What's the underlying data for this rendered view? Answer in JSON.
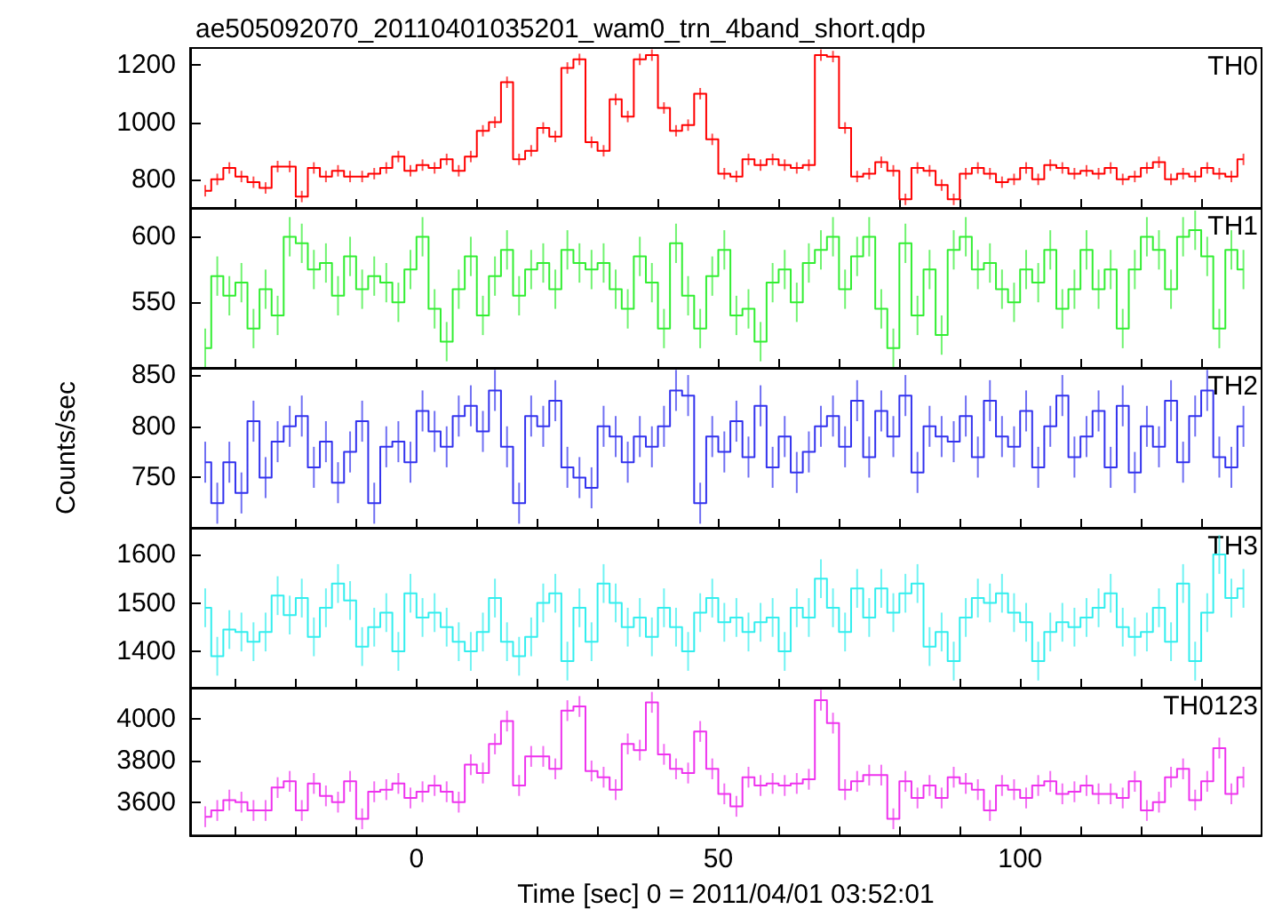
{
  "chart_data": [
    {
      "type": "step",
      "title": "ae505092070_20110401035201_wam0_trn_4band_short.qdp",
      "annotations": [
        "TH0"
      ],
      "color": "#ff0000",
      "marker": "none",
      "tick_labels": "y",
      "x": [
        -35,
        -33,
        -31,
        -29,
        -27,
        -25,
        -23,
        -21,
        -19,
        -17,
        -15,
        -13,
        -11,
        -9,
        -7,
        -5,
        -3,
        -1,
        1,
        3,
        5,
        7,
        9,
        11,
        13,
        15,
        17,
        19,
        21,
        23,
        25,
        27,
        29,
        31,
        33,
        35,
        37,
        39,
        41,
        43,
        45,
        47,
        49,
        51,
        53,
        55,
        57,
        59,
        61,
        63,
        65,
        67,
        69,
        71,
        73,
        75,
        77,
        79,
        81,
        83,
        85,
        87,
        89,
        91,
        93,
        95,
        97,
        99,
        101,
        103,
        105,
        107,
        109,
        111,
        113,
        115,
        117,
        119,
        121,
        123,
        125,
        127,
        129,
        131,
        133,
        135,
        137
      ],
      "values": [
        760,
        800,
        840,
        810,
        790,
        770,
        845,
        845,
        740,
        840,
        810,
        830,
        810,
        810,
        820,
        840,
        880,
        830,
        850,
        840,
        870,
        830,
        880,
        970,
        1000,
        1140,
        870,
        900,
        980,
        950,
        1190,
        1220,
        930,
        900,
        1080,
        1020,
        1220,
        1235,
        1050,
        970,
        990,
        1100,
        940,
        820,
        810,
        870,
        850,
        870,
        850,
        840,
        850,
        1235,
        1230,
        980,
        810,
        820,
        860,
        830,
        730,
        840,
        830,
        780,
        730,
        820,
        840,
        820,
        790,
        800,
        840,
        800,
        850,
        840,
        820,
        830,
        820,
        840,
        800,
        810,
        840,
        860,
        800,
        820,
        810,
        840,
        820,
        810,
        870
      ],
      "errors": [
        20,
        20,
        20,
        20,
        20,
        20,
        20,
        20,
        20,
        20,
        20,
        20,
        20,
        20,
        20,
        20,
        20,
        20,
        20,
        20,
        20,
        20,
        20,
        20,
        20,
        20,
        20,
        20,
        20,
        20,
        20,
        20,
        20,
        20,
        20,
        20,
        20,
        20,
        20,
        20,
        20,
        20,
        20,
        20,
        20,
        20,
        20,
        20,
        20,
        20,
        20,
        20,
        20,
        20,
        20,
        20,
        20,
        20,
        20,
        20,
        20,
        20,
        20,
        20,
        20,
        20,
        20,
        20,
        20,
        20,
        20,
        20,
        20,
        20,
        20,
        20,
        20,
        20,
        20,
        20,
        20,
        20,
        20,
        20,
        20,
        20,
        20
      ],
      "xlim": [
        -37.5,
        140
      ],
      "xticks": [
        {
          "value": -30,
          "label": null
        },
        {
          "value": -20,
          "label": null
        },
        {
          "value": -10,
          "label": null
        },
        0,
        {
          "value": 10,
          "label": null
        },
        {
          "value": 20,
          "label": null
        },
        {
          "value": 30,
          "label": null
        },
        {
          "value": 40,
          "label": null
        },
        50,
        {
          "value": 60,
          "label": null
        },
        {
          "value": 70,
          "label": null
        },
        {
          "value": 80,
          "label": null
        },
        {
          "value": 90,
          "label": null
        },
        100,
        {
          "value": 110,
          "label": null
        },
        {
          "value": 120,
          "label": null
        },
        {
          "value": 130,
          "label": null
        }
      ],
      "ylim": [
        700,
        1260
      ],
      "yticks": [
        800,
        1000,
        1200
      ]
    },
    {
      "type": "step",
      "annotations": [
        "TH1"
      ],
      "color": "#33ee33",
      "marker": "none",
      "tick_labels": "y",
      "x": [
        -35,
        -33,
        -31,
        -29,
        -27,
        -25,
        -23,
        -21,
        -19,
        -17,
        -15,
        -13,
        -11,
        -9,
        -7,
        -5,
        -3,
        -1,
        1,
        3,
        5,
        7,
        9,
        11,
        13,
        15,
        17,
        19,
        21,
        23,
        25,
        27,
        29,
        31,
        33,
        35,
        37,
        39,
        41,
        43,
        45,
        47,
        49,
        51,
        53,
        55,
        57,
        59,
        61,
        63,
        65,
        67,
        69,
        71,
        73,
        75,
        77,
        79,
        81,
        83,
        85,
        87,
        89,
        91,
        93,
        95,
        97,
        99,
        101,
        103,
        105,
        107,
        109,
        111,
        113,
        115,
        117,
        119,
        121,
        123,
        125,
        127,
        129,
        131,
        133,
        135,
        137
      ],
      "values": [
        515,
        570,
        555,
        565,
        530,
        560,
        540,
        600,
        595,
        575,
        580,
        555,
        585,
        560,
        570,
        565,
        550,
        575,
        600,
        545,
        520,
        560,
        585,
        540,
        570,
        590,
        555,
        575,
        580,
        560,
        590,
        580,
        575,
        580,
        560,
        545,
        585,
        565,
        530,
        595,
        555,
        530,
        570,
        590,
        540,
        545,
        520,
        565,
        575,
        550,
        580,
        590,
        600,
        560,
        585,
        600,
        545,
        515,
        595,
        540,
        575,
        525,
        590,
        600,
        575,
        580,
        560,
        550,
        575,
        565,
        590,
        545,
        560,
        590,
        560,
        575,
        530,
        575,
        600,
        590,
        560,
        600,
        605,
        585,
        530,
        590,
        575
      ],
      "errors": [
        15,
        15,
        15,
        15,
        15,
        15,
        15,
        15,
        15,
        15,
        15,
        15,
        15,
        15,
        15,
        15,
        15,
        15,
        15,
        15,
        15,
        15,
        15,
        15,
        15,
        15,
        15,
        15,
        15,
        15,
        15,
        15,
        15,
        15,
        15,
        15,
        15,
        15,
        15,
        15,
        15,
        15,
        15,
        15,
        15,
        15,
        15,
        15,
        15,
        15,
        15,
        15,
        15,
        15,
        15,
        15,
        15,
        15,
        15,
        15,
        15,
        15,
        15,
        15,
        15,
        15,
        15,
        15,
        15,
        15,
        15,
        15,
        15,
        15,
        15,
        15,
        15,
        15,
        15,
        15,
        15,
        15,
        15,
        15,
        15,
        15,
        15
      ],
      "xlim": [
        -37.5,
        140
      ],
      "xticks": [
        {
          "value": -30,
          "label": null
        },
        {
          "value": -20,
          "label": null
        },
        {
          "value": -10,
          "label": null
        },
        0,
        {
          "value": 10,
          "label": null
        },
        {
          "value": 20,
          "label": null
        },
        {
          "value": 30,
          "label": null
        },
        {
          "value": 40,
          "label": null
        },
        50,
        {
          "value": 60,
          "label": null
        },
        {
          "value": 70,
          "label": null
        },
        {
          "value": 80,
          "label": null
        },
        {
          "value": 90,
          "label": null
        },
        100,
        {
          "value": 110,
          "label": null
        },
        {
          "value": 120,
          "label": null
        },
        {
          "value": 130,
          "label": null
        }
      ],
      "ylim": [
        500,
        622
      ],
      "yticks": [
        550,
        600
      ]
    },
    {
      "type": "step",
      "ylabel": "Counts/sec",
      "annotations": [
        "TH2"
      ],
      "color": "#3333ee",
      "marker": "none",
      "tick_labels": "y",
      "x": [
        -35,
        -33,
        -31,
        -29,
        -27,
        -25,
        -23,
        -21,
        -19,
        -17,
        -15,
        -13,
        -11,
        -9,
        -7,
        -5,
        -3,
        -1,
        1,
        3,
        5,
        7,
        9,
        11,
        13,
        15,
        17,
        19,
        21,
        23,
        25,
        27,
        29,
        31,
        33,
        35,
        37,
        39,
        41,
        43,
        45,
        47,
        49,
        51,
        53,
        55,
        57,
        59,
        61,
        63,
        65,
        67,
        69,
        71,
        73,
        75,
        77,
        79,
        81,
        83,
        85,
        87,
        89,
        91,
        93,
        95,
        97,
        99,
        101,
        103,
        105,
        107,
        109,
        111,
        113,
        115,
        117,
        119,
        121,
        123,
        125,
        127,
        129,
        131,
        133,
        135,
        137
      ],
      "values": [
        765,
        725,
        765,
        735,
        805,
        750,
        785,
        800,
        810,
        760,
        785,
        745,
        775,
        805,
        725,
        780,
        785,
        765,
        815,
        795,
        780,
        810,
        820,
        795,
        835,
        780,
        725,
        810,
        800,
        825,
        760,
        750,
        740,
        800,
        790,
        765,
        790,
        780,
        800,
        835,
        830,
        725,
        790,
        775,
        805,
        770,
        820,
        760,
        790,
        755,
        775,
        800,
        810,
        780,
        825,
        770,
        815,
        790,
        830,
        755,
        800,
        790,
        785,
        810,
        770,
        825,
        790,
        780,
        815,
        760,
        800,
        830,
        770,
        790,
        815,
        760,
        820,
        755,
        800,
        780,
        825,
        765,
        810,
        835,
        770,
        760,
        800
      ],
      "errors": [
        20,
        20,
        20,
        20,
        20,
        20,
        20,
        20,
        20,
        20,
        20,
        20,
        20,
        20,
        20,
        20,
        20,
        20,
        20,
        20,
        20,
        20,
        20,
        20,
        20,
        20,
        20,
        20,
        20,
        20,
        20,
        20,
        20,
        20,
        20,
        20,
        20,
        20,
        20,
        20,
        20,
        20,
        20,
        20,
        20,
        20,
        20,
        20,
        20,
        20,
        20,
        20,
        20,
        20,
        20,
        20,
        20,
        20,
        20,
        20,
        20,
        20,
        20,
        20,
        20,
        20,
        20,
        20,
        20,
        20,
        20,
        20,
        20,
        20,
        20,
        20,
        20,
        20,
        20,
        20,
        20,
        20,
        20,
        20,
        20,
        20,
        20
      ],
      "xlim": [
        -37.5,
        140
      ],
      "xticks": [
        {
          "value": -30,
          "label": null
        },
        {
          "value": -20,
          "label": null
        },
        {
          "value": -10,
          "label": null
        },
        0,
        {
          "value": 10,
          "label": null
        },
        {
          "value": 20,
          "label": null
        },
        {
          "value": 30,
          "label": null
        },
        {
          "value": 40,
          "label": null
        },
        50,
        {
          "value": 60,
          "label": null
        },
        {
          "value": 70,
          "label": null
        },
        {
          "value": 80,
          "label": null
        },
        {
          "value": 90,
          "label": null
        },
        100,
        {
          "value": 110,
          "label": null
        },
        {
          "value": 120,
          "label": null
        },
        {
          "value": 130,
          "label": null
        }
      ],
      "ylim": [
        701,
        857
      ],
      "yticks": [
        750,
        800,
        850
      ]
    },
    {
      "type": "step",
      "annotations": [
        "TH3"
      ],
      "color": "#33eeee",
      "marker": "none",
      "tick_labels": "y",
      "x": [
        -35,
        -33,
        -31,
        -29,
        -27,
        -25,
        -23,
        -21,
        -19,
        -17,
        -15,
        -13,
        -11,
        -9,
        -7,
        -5,
        -3,
        -1,
        1,
        3,
        5,
        7,
        9,
        11,
        13,
        15,
        17,
        19,
        21,
        23,
        25,
        27,
        29,
        31,
        33,
        35,
        37,
        39,
        41,
        43,
        45,
        47,
        49,
        51,
        53,
        55,
        57,
        59,
        61,
        63,
        65,
        67,
        69,
        71,
        73,
        75,
        77,
        79,
        81,
        83,
        85,
        87,
        89,
        91,
        93,
        95,
        97,
        99,
        101,
        103,
        105,
        107,
        109,
        111,
        113,
        115,
        117,
        119,
        121,
        123,
        125,
        127,
        129,
        131,
        133,
        135,
        137
      ],
      "values": [
        1490,
        1390,
        1445,
        1440,
        1420,
        1440,
        1515,
        1475,
        1510,
        1430,
        1490,
        1540,
        1505,
        1410,
        1450,
        1480,
        1400,
        1520,
        1470,
        1480,
        1450,
        1420,
        1400,
        1440,
        1510,
        1420,
        1390,
        1430,
        1500,
        1520,
        1380,
        1490,
        1420,
        1540,
        1500,
        1450,
        1470,
        1430,
        1490,
        1450,
        1400,
        1480,
        1510,
        1460,
        1470,
        1440,
        1460,
        1470,
        1400,
        1490,
        1470,
        1550,
        1490,
        1440,
        1530,
        1470,
        1530,
        1480,
        1520,
        1540,
        1410,
        1440,
        1380,
        1470,
        1510,
        1500,
        1520,
        1480,
        1460,
        1380,
        1440,
        1460,
        1450,
        1470,
        1490,
        1520,
        1450,
        1430,
        1440,
        1490,
        1420,
        1540,
        1380,
        1480,
        1600,
        1510,
        1530
      ],
      "errors": [
        40,
        40,
        40,
        40,
        40,
        40,
        40,
        40,
        40,
        40,
        40,
        40,
        40,
        40,
        40,
        40,
        40,
        40,
        40,
        40,
        40,
        40,
        40,
        40,
        40,
        40,
        40,
        40,
        40,
        40,
        40,
        40,
        40,
        40,
        40,
        40,
        40,
        40,
        40,
        40,
        40,
        40,
        40,
        40,
        40,
        40,
        40,
        40,
        40,
        40,
        40,
        40,
        40,
        40,
        40,
        40,
        40,
        40,
        40,
        40,
        40,
        40,
        40,
        40,
        40,
        40,
        40,
        40,
        40,
        40,
        40,
        40,
        40,
        40,
        40,
        40,
        40,
        40,
        40,
        40,
        40,
        40,
        40,
        40,
        40,
        40,
        40
      ],
      "xlim": [
        -37.5,
        140
      ],
      "xticks": [
        {
          "value": -30,
          "label": null
        },
        {
          "value": -20,
          "label": null
        },
        {
          "value": -10,
          "label": null
        },
        0,
        {
          "value": 10,
          "label": null
        },
        {
          "value": 20,
          "label": null
        },
        {
          "value": 30,
          "label": null
        },
        {
          "value": 40,
          "label": null
        },
        50,
        {
          "value": 60,
          "label": null
        },
        {
          "value": 70,
          "label": null
        },
        {
          "value": 80,
          "label": null
        },
        {
          "value": 90,
          "label": null
        },
        100,
        {
          "value": 110,
          "label": null
        },
        {
          "value": 120,
          "label": null
        },
        {
          "value": 130,
          "label": null
        }
      ],
      "ylim": [
        1325,
        1655
      ],
      "yticks": [
        1400,
        1500,
        1600
      ]
    },
    {
      "type": "step",
      "xlabel": "Time [sec] 0 = 2011/04/01 03:52:01",
      "annotations": [
        "TH0123"
      ],
      "color": "#ee33ee",
      "marker": "none",
      "x": [
        -35,
        -33,
        -31,
        -29,
        -27,
        -25,
        -23,
        -21,
        -19,
        -17,
        -15,
        -13,
        -11,
        -9,
        -7,
        -5,
        -3,
        -1,
        1,
        3,
        5,
        7,
        9,
        11,
        13,
        15,
        17,
        19,
        21,
        23,
        25,
        27,
        29,
        31,
        33,
        35,
        37,
        39,
        41,
        43,
        45,
        47,
        49,
        51,
        53,
        55,
        57,
        59,
        61,
        63,
        65,
        67,
        69,
        71,
        73,
        75,
        77,
        79,
        81,
        83,
        85,
        87,
        89,
        91,
        93,
        95,
        97,
        99,
        101,
        103,
        105,
        107,
        109,
        111,
        113,
        115,
        117,
        119,
        121,
        123,
        125,
        127,
        129,
        131,
        133,
        135,
        137
      ],
      "values": [
        3530,
        3560,
        3610,
        3600,
        3560,
        3560,
        3670,
        3700,
        3560,
        3690,
        3630,
        3600,
        3700,
        3520,
        3650,
        3660,
        3690,
        3620,
        3650,
        3680,
        3650,
        3600,
        3780,
        3740,
        3880,
        3990,
        3680,
        3820,
        3820,
        3760,
        4040,
        4060,
        3750,
        3720,
        3660,
        3880,
        3850,
        4080,
        3830,
        3760,
        3740,
        3940,
        3760,
        3640,
        3580,
        3720,
        3680,
        3690,
        3680,
        3690,
        3710,
        4090,
        3980,
        3660,
        3700,
        3730,
        3730,
        3520,
        3700,
        3620,
        3680,
        3620,
        3720,
        3690,
        3660,
        3560,
        3680,
        3660,
        3620,
        3680,
        3700,
        3640,
        3650,
        3680,
        3640,
        3640,
        3620,
        3700,
        3560,
        3600,
        3720,
        3760,
        3610,
        3700,
        3860,
        3640,
        3720
      ],
      "errors": [
        50,
        50,
        50,
        50,
        50,
        50,
        50,
        50,
        50,
        50,
        50,
        50,
        50,
        50,
        50,
        50,
        50,
        50,
        50,
        50,
        50,
        50,
        50,
        50,
        50,
        50,
        50,
        50,
        50,
        50,
        50,
        50,
        50,
        50,
        50,
        50,
        50,
        50,
        50,
        50,
        50,
        50,
        50,
        50,
        50,
        50,
        50,
        50,
        50,
        50,
        50,
        50,
        50,
        50,
        50,
        50,
        50,
        50,
        50,
        50,
        50,
        50,
        50,
        50,
        50,
        50,
        50,
        50,
        50,
        50,
        50,
        50,
        50,
        50,
        50,
        50,
        50,
        50,
        50,
        50,
        50,
        50,
        50,
        50,
        50,
        50,
        50
      ],
      "xlim": [
        -37.5,
        140
      ],
      "xticks": [
        {
          "value": -30,
          "label": null
        },
        {
          "value": -20,
          "label": null
        },
        {
          "value": -10,
          "label": null
        },
        0,
        {
          "value": 10,
          "label": null
        },
        {
          "value": 20,
          "label": null
        },
        {
          "value": 30,
          "label": null
        },
        {
          "value": 40,
          "label": null
        },
        50,
        {
          "value": 60,
          "label": null
        },
        {
          "value": 70,
          "label": null
        },
        {
          "value": 80,
          "label": null
        },
        {
          "value": 90,
          "label": null
        },
        100,
        {
          "value": 110,
          "label": null
        },
        {
          "value": 120,
          "label": null
        },
        {
          "value": 130,
          "label": null
        }
      ],
      "ylim": [
        3440,
        4150
      ],
      "yticks": [
        3600,
        3800,
        4000
      ]
    }
  ]
}
